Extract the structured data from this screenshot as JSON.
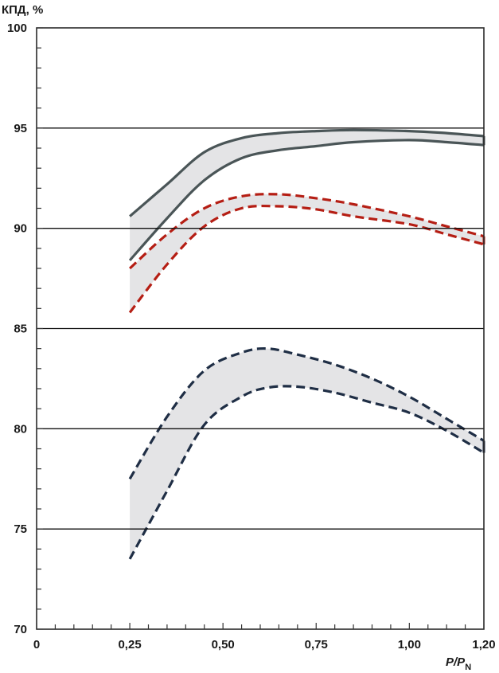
{
  "chart_data": {
    "type": "area",
    "ylabel": "КПД, %",
    "xlabel_main": "P/P",
    "xlabel_sub": "N",
    "xlim": [
      0,
      1.2
    ],
    "ylim": [
      70,
      100
    ],
    "x_ticks": [
      {
        "value": 0,
        "label": "0"
      },
      {
        "value": 0.25,
        "label": "0,25"
      },
      {
        "value": 0.5,
        "label": "0,50"
      },
      {
        "value": 0.75,
        "label": "0,75"
      },
      {
        "value": 1.0,
        "label": "1,00"
      },
      {
        "value": 1.2,
        "label": "1,20"
      }
    ],
    "y_ticks": [
      70,
      75,
      80,
      85,
      90,
      95,
      100
    ],
    "grid_y": [
      75,
      80,
      85,
      90,
      95
    ],
    "bands": [
      {
        "style": "solid",
        "color": "#4a5557",
        "upper": [
          [
            0.25,
            90.6
          ],
          [
            0.35,
            92.2
          ],
          [
            0.45,
            93.8
          ],
          [
            0.55,
            94.5
          ],
          [
            0.65,
            94.75
          ],
          [
            0.75,
            94.85
          ],
          [
            0.85,
            94.9
          ],
          [
            1.0,
            94.85
          ],
          [
            1.1,
            94.75
          ],
          [
            1.2,
            94.6
          ]
        ],
        "lower": [
          [
            0.25,
            88.4
          ],
          [
            0.35,
            90.5
          ],
          [
            0.45,
            92.4
          ],
          [
            0.55,
            93.5
          ],
          [
            0.65,
            93.9
          ],
          [
            0.75,
            94.1
          ],
          [
            0.85,
            94.3
          ],
          [
            1.0,
            94.4
          ],
          [
            1.1,
            94.3
          ],
          [
            1.2,
            94.15
          ]
        ]
      },
      {
        "style": "dashed",
        "color": "#b51e14",
        "upper": [
          [
            0.25,
            88.0
          ],
          [
            0.35,
            89.7
          ],
          [
            0.45,
            91.0
          ],
          [
            0.55,
            91.6
          ],
          [
            0.65,
            91.7
          ],
          [
            0.75,
            91.5
          ],
          [
            0.85,
            91.2
          ],
          [
            1.0,
            90.6
          ],
          [
            1.1,
            90.1
          ],
          [
            1.2,
            89.6
          ]
        ],
        "lower": [
          [
            0.25,
            85.8
          ],
          [
            0.35,
            88.2
          ],
          [
            0.45,
            90.1
          ],
          [
            0.55,
            91.0
          ],
          [
            0.65,
            91.1
          ],
          [
            0.75,
            90.95
          ],
          [
            0.85,
            90.6
          ],
          [
            1.0,
            90.2
          ],
          [
            1.1,
            89.7
          ],
          [
            1.2,
            89.2
          ]
        ]
      },
      {
        "style": "dashed",
        "color": "#1f2e45",
        "upper": [
          [
            0.25,
            77.5
          ],
          [
            0.35,
            80.6
          ],
          [
            0.45,
            82.9
          ],
          [
            0.55,
            83.8
          ],
          [
            0.62,
            84.0
          ],
          [
            0.7,
            83.7
          ],
          [
            0.8,
            83.2
          ],
          [
            0.9,
            82.5
          ],
          [
            1.0,
            81.6
          ],
          [
            1.1,
            80.5
          ],
          [
            1.2,
            79.4
          ]
        ],
        "lower": [
          [
            0.25,
            73.5
          ],
          [
            0.35,
            76.9
          ],
          [
            0.45,
            80.2
          ],
          [
            0.55,
            81.6
          ],
          [
            0.62,
            82.05
          ],
          [
            0.7,
            82.1
          ],
          [
            0.8,
            81.8
          ],
          [
            0.9,
            81.3
          ],
          [
            1.0,
            80.8
          ],
          [
            1.1,
            79.9
          ],
          [
            1.2,
            78.8
          ]
        ]
      }
    ],
    "band_fill": "#e4e4e6",
    "grid_color": "#111111",
    "frame_color": "#2a2a2a"
  }
}
